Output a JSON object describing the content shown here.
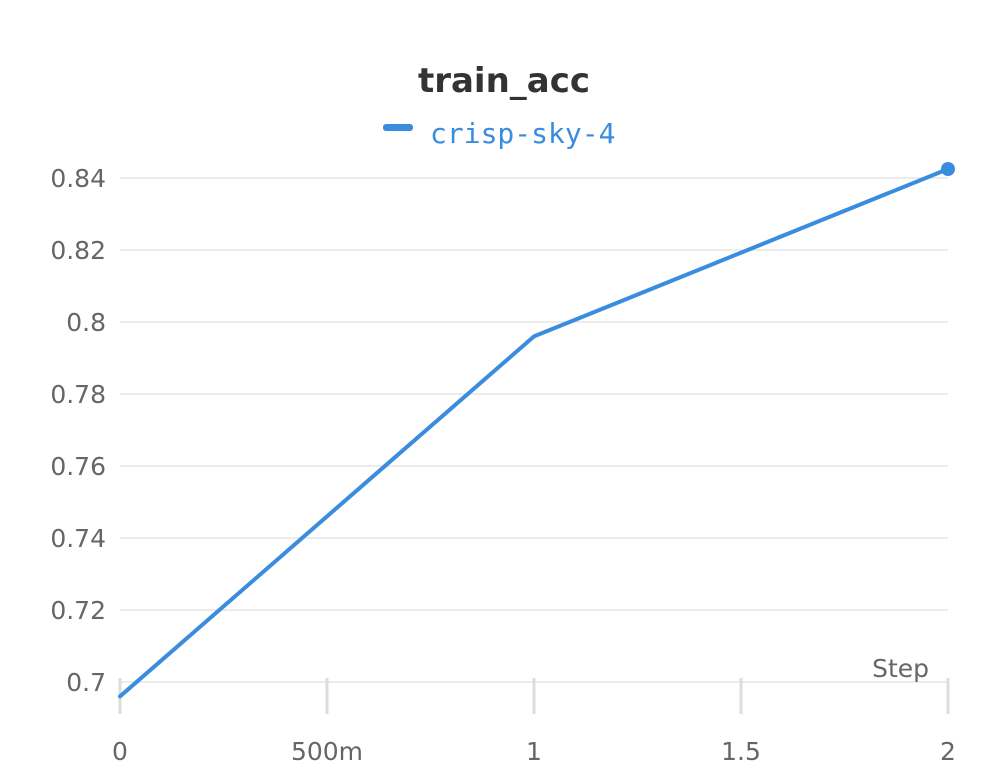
{
  "chart_data": {
    "type": "line",
    "title": "train_acc",
    "xlabel": "Step",
    "ylabel": "",
    "xlim": [
      0,
      2
    ],
    "ylim": [
      0.695,
      0.845
    ],
    "grid": true,
    "legend_position": "top-center",
    "x_ticks": [
      {
        "value": 0,
        "label": "0"
      },
      {
        "value": 0.5,
        "label": "500m"
      },
      {
        "value": 1,
        "label": "1"
      },
      {
        "value": 1.5,
        "label": "1.5"
      },
      {
        "value": 2,
        "label": "2"
      }
    ],
    "y_ticks": [
      {
        "value": 0.7,
        "label": "0.7"
      },
      {
        "value": 0.72,
        "label": "0.72"
      },
      {
        "value": 0.74,
        "label": "0.74"
      },
      {
        "value": 0.76,
        "label": "0.76"
      },
      {
        "value": 0.78,
        "label": "0.78"
      },
      {
        "value": 0.8,
        "label": "0.8"
      },
      {
        "value": 0.82,
        "label": "0.82"
      },
      {
        "value": 0.84,
        "label": "0.84"
      }
    ],
    "series": [
      {
        "name": "crisp-sky-4",
        "color": "#3a8dde",
        "x": [
          0,
          1,
          2
        ],
        "y": [
          0.696,
          0.796,
          0.8425
        ]
      }
    ]
  }
}
